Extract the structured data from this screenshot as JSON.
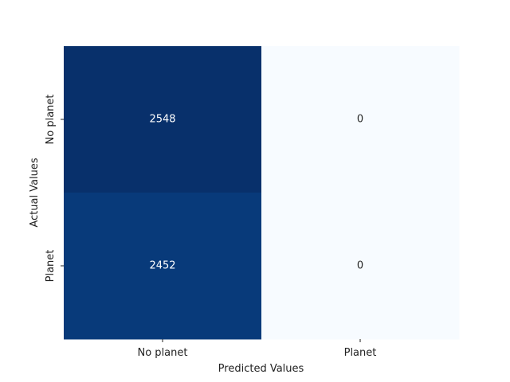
{
  "chart_data": {
    "type": "heatmap",
    "x_categories": [
      "No planet",
      "Planet"
    ],
    "y_categories": [
      "No planet",
      "Planet"
    ],
    "values": [
      [
        2548,
        0
      ],
      [
        2452,
        0
      ]
    ],
    "xlabel": "Predicted Values",
    "ylabel": "Actual Values",
    "colormap": "Blues",
    "colorbar": false
  }
}
